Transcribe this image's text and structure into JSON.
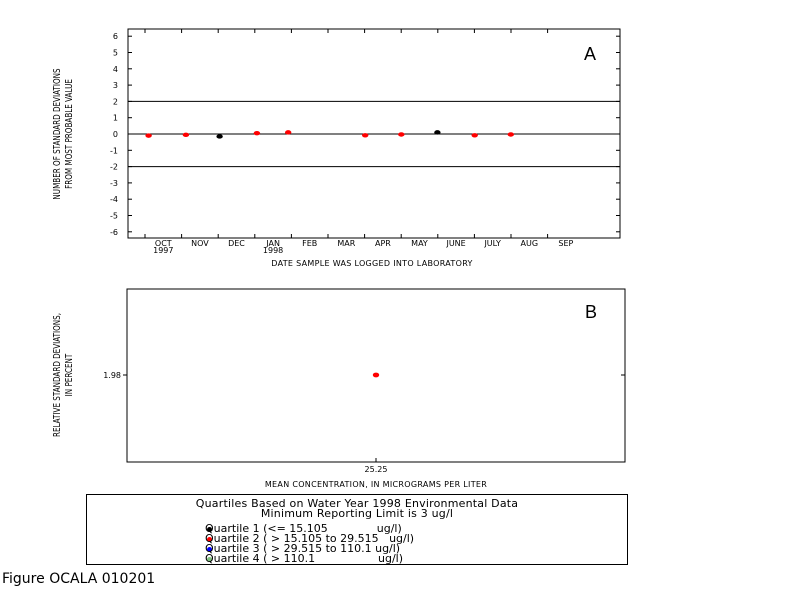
{
  "figure_caption": "Figure OCALA 010201",
  "legend": {
    "title_line1": "Quartiles Based on Water Year 1998 Environmental Data",
    "title_line2": "Minimum Reporting Limit is 3 ug/l",
    "items": [
      {
        "label": "Quartile 1 (<= 15.105              ug/l)",
        "color": "#000000"
      },
      {
        "label": "Quartile 2 ( > 15.105 to 29.515   ug/l)",
        "color": "#ff0000"
      },
      {
        "label": "Quartile 3 ( > 29.515 to 110.1 ug/l)",
        "color": "#0000ff"
      },
      {
        "label": "Quartile 4 ( > 110.1                  ug/l)",
        "color": "#7fbf7f"
      }
    ]
  },
  "chart_data": [
    {
      "type": "scatter",
      "panel_label": "A",
      "xlabel": "DATE SAMPLE WAS LOGGED INTO LABORATORY",
      "ylabel_line1": "NUMBER OF STANDARD DEVIATIONS",
      "ylabel_line2": "FROM MOST PROBABLE VALUE",
      "ylim": [
        -6,
        6
      ],
      "yticks": [
        "-6",
        "-5",
        "-4",
        "-3",
        "-2",
        "-1",
        "0",
        "1",
        "2",
        "3",
        "4",
        "5",
        "6"
      ],
      "xticks": [
        "OCT",
        "NOV",
        "DEC",
        "JAN",
        "FEB",
        "MAR",
        "APR",
        "MAY",
        "JUNE",
        "JULY",
        "AUG",
        "SEP"
      ],
      "xtick_years": [
        {
          "month": "OCT",
          "year": "1997"
        },
        {
          "month": "JAN",
          "year": "1998"
        }
      ],
      "reference_lines": [
        2,
        0,
        -2
      ],
      "points": [
        {
          "x": "1997-10-04",
          "y": -0.1,
          "color": "#ff0000"
        },
        {
          "x": "1997-11-04",
          "y": -0.05,
          "color": "#ff0000"
        },
        {
          "x": "1997-12-02",
          "y": -0.15,
          "color": "#000000"
        },
        {
          "x": "1998-01-02",
          "y": 0.05,
          "color": "#ff0000"
        },
        {
          "x": "1998-01-28",
          "y": 0.1,
          "color": "#ff0000"
        },
        {
          "x": "1998-04-02",
          "y": -0.08,
          "color": "#ff0000"
        },
        {
          "x": "1998-05-02",
          "y": -0.03,
          "color": "#ff0000"
        },
        {
          "x": "1998-06-01",
          "y": 0.1,
          "color": "#000000"
        },
        {
          "x": "1998-07-02",
          "y": -0.08,
          "color": "#ff0000"
        },
        {
          "x": "1998-08-01",
          "y": -0.03,
          "color": "#ff0000"
        }
      ]
    },
    {
      "type": "scatter",
      "panel_label": "B",
      "xlabel": "MEAN CONCENTRATION, IN MICROGRAMS PER LITER",
      "ylabel_line1": "RELATIVE STANDARD DEVIATIONS,",
      "ylabel_line2": "IN PERCENT",
      "xtick": "25.25",
      "ytick": "1.98",
      "points": [
        {
          "x": 25.25,
          "y": 1.98,
          "color": "#ff0000"
        }
      ]
    }
  ]
}
